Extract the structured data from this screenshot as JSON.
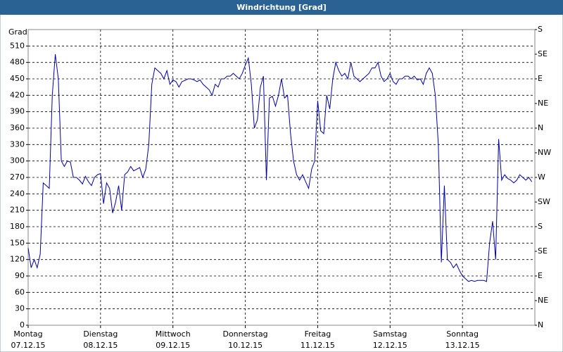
{
  "chart_data": {
    "type": "line",
    "title": "Windrichtung [Grad]",
    "y_label": "Grad",
    "x": [
      0,
      1,
      2,
      3,
      4,
      5,
      6,
      7,
      8,
      9,
      10,
      11,
      12,
      13,
      14,
      15,
      16,
      17,
      18,
      19,
      20,
      21,
      22,
      23,
      24,
      25,
      26,
      27,
      28,
      29,
      30,
      31,
      32,
      33,
      34,
      35,
      36,
      37,
      38,
      39,
      40,
      41,
      42,
      43,
      44,
      45,
      46,
      47,
      48,
      49,
      50,
      51,
      52,
      53,
      54,
      55,
      56,
      57,
      58,
      59,
      60,
      61,
      62,
      63,
      64,
      65,
      66,
      67,
      68,
      69,
      70,
      71,
      72,
      73,
      74,
      75,
      76,
      77,
      78,
      79,
      80,
      81,
      82,
      83,
      84,
      85,
      86,
      87,
      88,
      89,
      90,
      91,
      92,
      93,
      94,
      95,
      96,
      97,
      98,
      99,
      100,
      101,
      102,
      103,
      104,
      105,
      106,
      107,
      108,
      109,
      110,
      111,
      112,
      113,
      114,
      115,
      116,
      117,
      118,
      119,
      120,
      121,
      122,
      123,
      124,
      125,
      126,
      127,
      128,
      129,
      130,
      131,
      132,
      133,
      134,
      135,
      136,
      137,
      138,
      139,
      140,
      141,
      142,
      143,
      144,
      145,
      146,
      147,
      148,
      149,
      150,
      151,
      152,
      153,
      154,
      155,
      156,
      157,
      158,
      159,
      160,
      161,
      162,
      163,
      164,
      165,
      166,
      167
    ],
    "series": [
      {
        "name": "Windrichtung",
        "color": "#0000a8",
        "values": [
          141,
          105,
          120,
          105,
          130,
          260,
          255,
          250,
          420,
          495,
          450,
          300,
          290,
          300,
          298,
          270,
          270,
          265,
          258,
          272,
          262,
          255,
          270,
          275,
          277,
          222,
          260,
          250,
          205,
          225,
          255,
          210,
          275,
          280,
          290,
          282,
          285,
          288,
          270,
          285,
          330,
          440,
          470,
          465,
          460,
          450,
          465,
          440,
          448,
          445,
          435,
          445,
          447,
          450,
          450,
          448,
          445,
          448,
          440,
          435,
          430,
          420,
          440,
          435,
          450,
          450,
          455,
          455,
          460,
          455,
          450,
          460,
          475,
          488,
          440,
          360,
          375,
          435,
          455,
          265,
          415,
          418,
          400,
          420,
          450,
          415,
          420,
          350,
          300,
          275,
          265,
          275,
          262,
          250,
          285,
          300,
          410,
          355,
          350,
          420,
          395,
          450,
          480,
          465,
          455,
          460,
          450,
          480,
          455,
          450,
          445,
          450,
          455,
          460,
          470,
          470,
          480,
          455,
          445,
          450,
          460,
          445,
          440,
          450,
          450,
          455,
          455,
          450,
          455,
          448,
          450,
          440,
          460,
          470,
          460,
          420,
          330,
          115,
          255,
          120,
          115,
          105,
          112,
          100,
          90,
          85,
          80,
          82,
          80,
          82,
          82,
          82,
          80,
          150,
          190,
          120,
          340,
          265,
          275,
          268,
          265,
          260,
          265,
          275,
          270,
          265,
          270,
          262
        ]
      }
    ],
    "xlim": [
      0,
      168
    ],
    "xticks": [
      {
        "value": 0,
        "label": "Montag"
      },
      {
        "value": 24,
        "label": "Dienstag"
      },
      {
        "value": 48,
        "label": "Mittwoch"
      },
      {
        "value": 72,
        "label": "Donnerstag"
      },
      {
        "value": 96,
        "label": "Freitag"
      },
      {
        "value": 120,
        "label": "Samstag"
      },
      {
        "value": 144,
        "label": "Sonntag"
      }
    ],
    "xtick_dates": [
      "07.12.15",
      "08.12.15",
      "09.12.15",
      "10.12.15",
      "11.12.15",
      "12.12.15",
      "13.12.15"
    ],
    "ylim": [
      0,
      540
    ],
    "yticks": [
      0,
      30,
      60,
      90,
      120,
      150,
      180,
      210,
      240,
      270,
      300,
      330,
      360,
      390,
      420,
      450,
      480,
      510
    ],
    "y2lim": [
      0,
      540
    ],
    "y2ticks": [
      {
        "value": 0,
        "label": "N"
      },
      {
        "value": 45,
        "label": "NE"
      },
      {
        "value": 90,
        "label": "E"
      },
      {
        "value": 135,
        "label": "SE"
      },
      {
        "value": 180,
        "label": "S"
      },
      {
        "value": 225,
        "label": "SW"
      },
      {
        "value": 270,
        "label": "W"
      },
      {
        "value": 315,
        "label": "NW"
      },
      {
        "value": 360,
        "label": "N"
      },
      {
        "value": 405,
        "label": "NE"
      },
      {
        "value": 450,
        "label": "E"
      },
      {
        "value": 495,
        "label": "SE"
      },
      {
        "value": 540,
        "label": "S"
      }
    ],
    "grid": true
  }
}
